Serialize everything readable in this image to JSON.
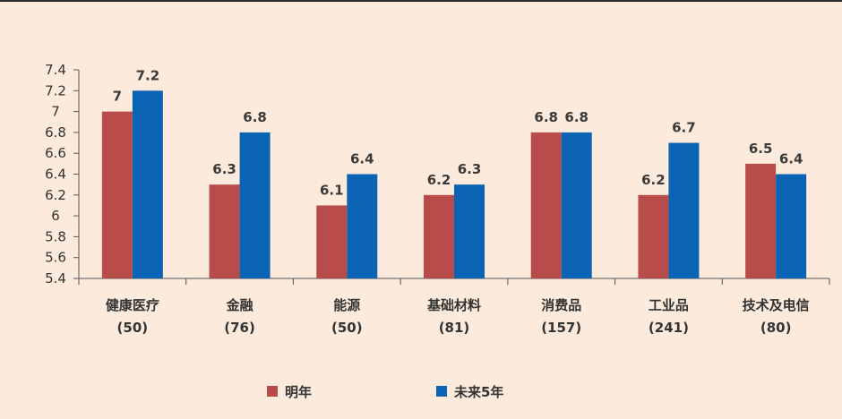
{
  "chart_data": {
    "type": "bar",
    "categories": [
      "健康医疗",
      "金融",
      "能源",
      "基础材料",
      "消费品",
      "工业品",
      "技术及电信"
    ],
    "category_counts": [
      "(50)",
      "(76)",
      "(50)",
      "(81)",
      "(157)",
      "(241)",
      "(80)"
    ],
    "series": [
      {
        "name": "明年",
        "values": [
          7,
          6.3,
          6.1,
          6.2,
          6.8,
          6.2,
          6.5
        ],
        "color": "#b84c4a"
      },
      {
        "name": "未来5年",
        "values": [
          7.2,
          6.8,
          6.4,
          6.3,
          6.8,
          6.7,
          6.4
        ],
        "color": "#0b63b3"
      }
    ],
    "value_labels": [
      [
        "7",
        "6.3",
        "6.1",
        "6.2",
        "6.8",
        "6.2",
        "6.5"
      ],
      [
        "7.2",
        "6.8",
        "6.4",
        "6.3",
        "6.8",
        "6.7",
        "6.4"
      ]
    ],
    "ylim": [
      5.4,
      7.4
    ],
    "yticks": [
      5.4,
      5.6,
      5.8,
      6,
      6.2,
      6.4,
      6.6,
      6.8,
      7,
      7.2,
      7.4
    ],
    "ytick_labels": [
      "5.4",
      "5.6",
      "5.8",
      "6",
      "6.2",
      "6.4",
      "6.6",
      "6.8",
      "7",
      "7.2",
      "7.4"
    ],
    "grid": false,
    "legend_position": "bottom-center",
    "title": "",
    "xlabel": "",
    "ylabel": ""
  },
  "colors": {
    "background": "#fcebdc",
    "axis": "#555555"
  }
}
